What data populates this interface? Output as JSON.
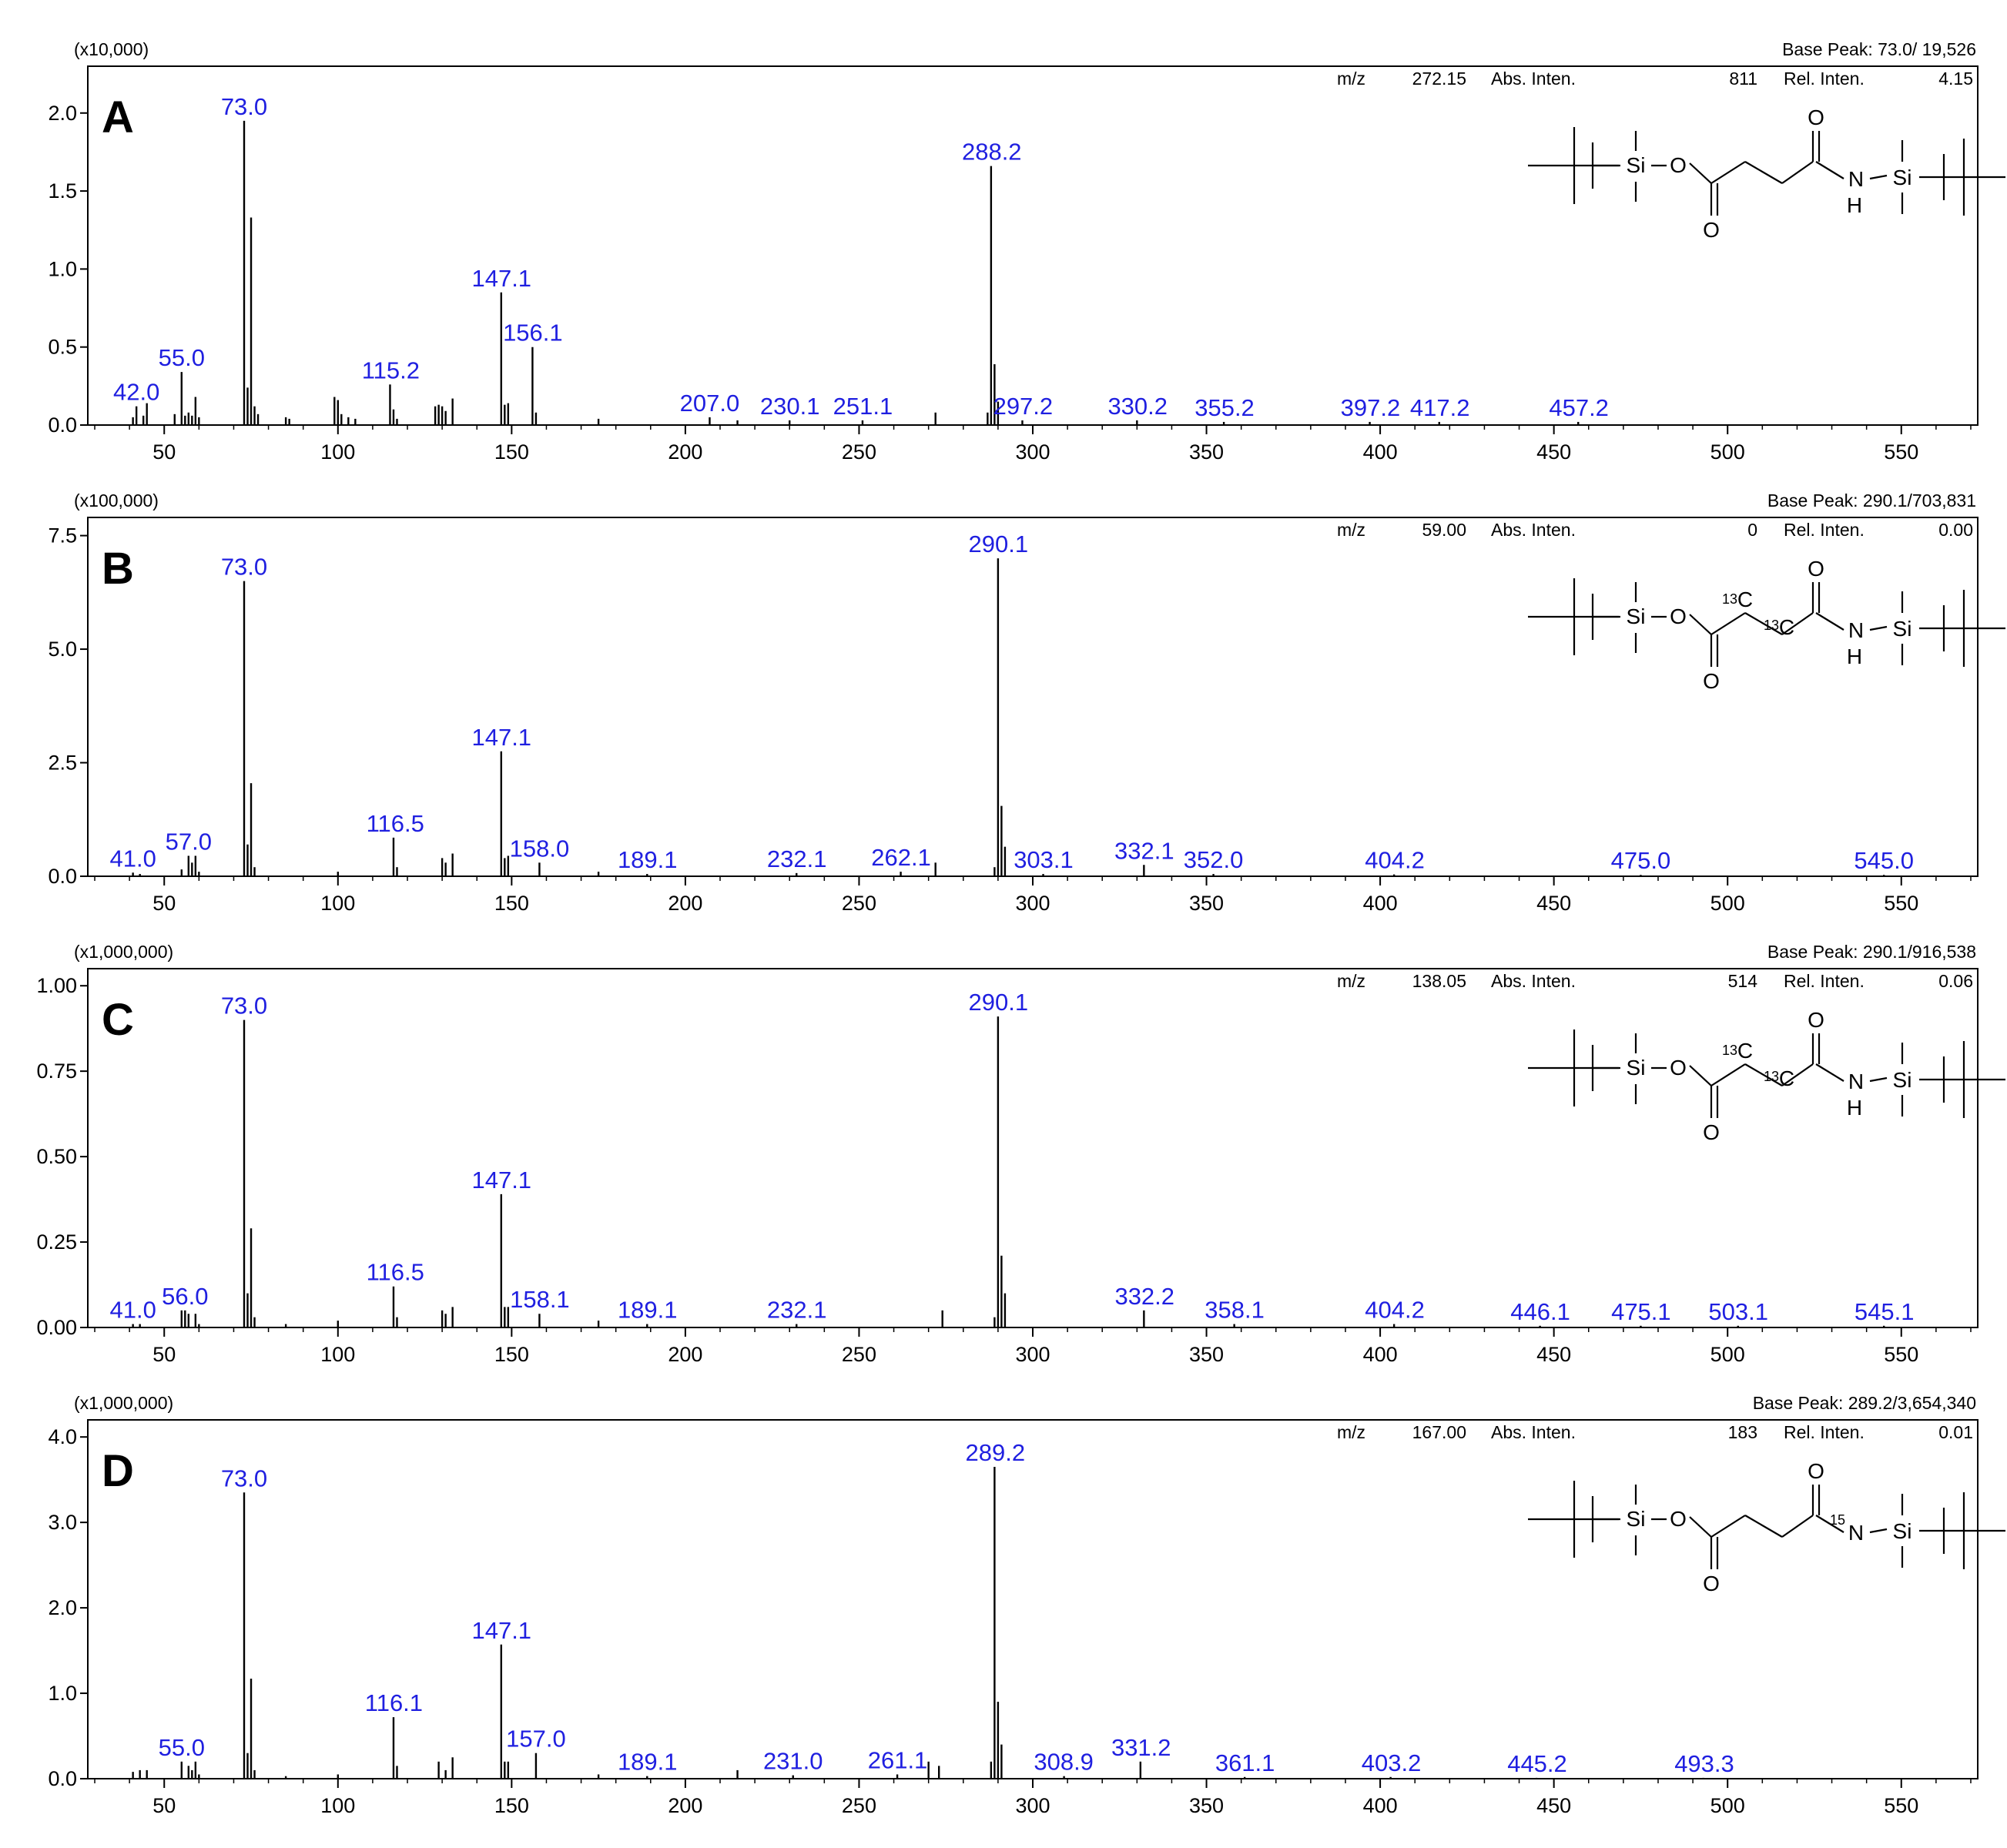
{
  "x_ticks": [
    50,
    100,
    150,
    200,
    250,
    300,
    350,
    400,
    450,
    500,
    550
  ],
  "chart_data": [
    {
      "type": "bar",
      "panel_letter": "A",
      "multiplier": "(x10,000)",
      "base_peak": "Base Peak: 73.0/ 19,526",
      "header": {
        "mz_label": "m/z",
        "mz_value": "272.15",
        "abs_label": "Abs. Inten.",
        "abs_value": "811",
        "rel_label": "Rel. Inten.",
        "rel_value": "4.15"
      },
      "xlim": [
        28,
        572
      ],
      "ylim": [
        0,
        2.3
      ],
      "y_ticks": [
        0.0,
        0.5,
        1.0,
        1.5,
        2.0
      ],
      "y_tick_labels": [
        "0.0",
        "0.5",
        "1.0",
        "1.5",
        "2.0"
      ],
      "peaks": [
        [
          41,
          0.05
        ],
        [
          42,
          0.12
        ],
        [
          44,
          0.06
        ],
        [
          45,
          0.14
        ],
        [
          53,
          0.07
        ],
        [
          55,
          0.34
        ],
        [
          56,
          0.06
        ],
        [
          57,
          0.08
        ],
        [
          58,
          0.06
        ],
        [
          59,
          0.18
        ],
        [
          60,
          0.05
        ],
        [
          73,
          1.95
        ],
        [
          74,
          0.24
        ],
        [
          75,
          1.33
        ],
        [
          76,
          0.12
        ],
        [
          77,
          0.07
        ],
        [
          85,
          0.05
        ],
        [
          86,
          0.04
        ],
        [
          99,
          0.18
        ],
        [
          100,
          0.16
        ],
        [
          101,
          0.07
        ],
        [
          103,
          0.05
        ],
        [
          105,
          0.04
        ],
        [
          115,
          0.26
        ],
        [
          116,
          0.1
        ],
        [
          117,
          0.04
        ],
        [
          128,
          0.12
        ],
        [
          129,
          0.13
        ],
        [
          130,
          0.12
        ],
        [
          131,
          0.09
        ],
        [
          133,
          0.17
        ],
        [
          147,
          0.85
        ],
        [
          148,
          0.13
        ],
        [
          149,
          0.14
        ],
        [
          156,
          0.5
        ],
        [
          157,
          0.08
        ],
        [
          175,
          0.04
        ],
        [
          207,
          0.05
        ],
        [
          215,
          0.03
        ],
        [
          230,
          0.03
        ],
        [
          251,
          0.03
        ],
        [
          272,
          0.08
        ],
        [
          287,
          0.08
        ],
        [
          288,
          1.66
        ],
        [
          289,
          0.39
        ],
        [
          290,
          0.15
        ],
        [
          297,
          0.03
        ],
        [
          330,
          0.03
        ],
        [
          355,
          0.02
        ],
        [
          397,
          0.02
        ],
        [
          417,
          0.02
        ],
        [
          457,
          0.02
        ]
      ],
      "labels": [
        {
          "text": "42.0",
          "mz": 42.0,
          "y": 0.12
        },
        {
          "text": "55.0",
          "mz": 55.0,
          "y": 0.34
        },
        {
          "text": "73.0",
          "mz": 73.0,
          "y": 1.95
        },
        {
          "text": "115.2",
          "mz": 115.2,
          "y": 0.26
        },
        {
          "text": "147.1",
          "mz": 147.1,
          "y": 0.85
        },
        {
          "text": "156.1",
          "mz": 156.1,
          "y": 0.5
        },
        {
          "text": "207.0",
          "mz": 207.0,
          "y": 0.05
        },
        {
          "text": "230.1",
          "mz": 230.1,
          "y": 0.03
        },
        {
          "text": "251.1",
          "mz": 251.1,
          "y": 0.03
        },
        {
          "text": "288.2",
          "mz": 288.2,
          "y": 1.66
        },
        {
          "text": "297.2",
          "mz": 297.2,
          "y": 0.03
        },
        {
          "text": "330.2",
          "mz": 330.2,
          "y": 0.03
        },
        {
          "text": "355.2",
          "mz": 355.2,
          "y": 0.02
        },
        {
          "text": "397.2",
          "mz": 397.2,
          "y": 0.02
        },
        {
          "text": "417.2",
          "mz": 417.2,
          "y": 0.02
        },
        {
          "text": "457.2",
          "mz": 457.2,
          "y": 0.02
        }
      ],
      "structure": {
        "atoms": [
          "Si",
          "O",
          "O",
          "O",
          "N",
          "H",
          "Si"
        ],
        "labels": [
          "",
          "",
          "",
          ""
        ]
      }
    },
    {
      "type": "bar",
      "panel_letter": "B",
      "multiplier": "(x100,000)",
      "base_peak": "Base Peak: 290.1/703,831",
      "header": {
        "mz_label": "m/z",
        "mz_value": "59.00",
        "abs_label": "Abs. Inten.",
        "abs_value": "0",
        "rel_label": "Rel. Inten.",
        "rel_value": "0.00"
      },
      "xlim": [
        28,
        572
      ],
      "ylim": [
        0,
        7.9
      ],
      "y_ticks": [
        0.0,
        2.5,
        5.0,
        7.5
      ],
      "y_tick_labels": [
        "0.0",
        "2.5",
        "5.0",
        "7.5"
      ],
      "peaks": [
        [
          41,
          0.08
        ],
        [
          43,
          0.05
        ],
        [
          55,
          0.15
        ],
        [
          57,
          0.45
        ],
        [
          58,
          0.3
        ],
        [
          59,
          0.45
        ],
        [
          60,
          0.1
        ],
        [
          73,
          6.5
        ],
        [
          74,
          0.7
        ],
        [
          75,
          2.05
        ],
        [
          76,
          0.2
        ],
        [
          100,
          0.1
        ],
        [
          116,
          0.85
        ],
        [
          117,
          0.2
        ],
        [
          130,
          0.4
        ],
        [
          131,
          0.3
        ],
        [
          133,
          0.5
        ],
        [
          147,
          2.75
        ],
        [
          148,
          0.4
        ],
        [
          149,
          0.45
        ],
        [
          158,
          0.3
        ],
        [
          175,
          0.1
        ],
        [
          189,
          0.05
        ],
        [
          232,
          0.07
        ],
        [
          262,
          0.1
        ],
        [
          272,
          0.3
        ],
        [
          289,
          0.2
        ],
        [
          290,
          7.0
        ],
        [
          291,
          1.55
        ],
        [
          292,
          0.65
        ],
        [
          303,
          0.05
        ],
        [
          332,
          0.25
        ],
        [
          352,
          0.05
        ],
        [
          404,
          0.04
        ],
        [
          475,
          0.03
        ],
        [
          545,
          0.03
        ]
      ],
      "labels": [
        {
          "text": "41.0",
          "mz": 41.0,
          "y": 0.08
        },
        {
          "text": "57.0",
          "mz": 57.0,
          "y": 0.45
        },
        {
          "text": "73.0",
          "mz": 73.0,
          "y": 6.5
        },
        {
          "text": "116.5",
          "mz": 116.5,
          "y": 0.85
        },
        {
          "text": "147.1",
          "mz": 147.1,
          "y": 2.75
        },
        {
          "text": "158.0",
          "mz": 158.0,
          "y": 0.3
        },
        {
          "text": "189.1",
          "mz": 189.1,
          "y": 0.05
        },
        {
          "text": "232.1",
          "mz": 232.1,
          "y": 0.07
        },
        {
          "text": "262.1",
          "mz": 262.1,
          "y": 0.1
        },
        {
          "text": "290.1",
          "mz": 290.1,
          "y": 7.0
        },
        {
          "text": "303.1",
          "mz": 303.1,
          "y": 0.05
        },
        {
          "text": "332.1",
          "mz": 332.1,
          "y": 0.25
        },
        {
          "text": "352.0",
          "mz": 352.0,
          "y": 0.05
        },
        {
          "text": "404.2",
          "mz": 404.2,
          "y": 0.04
        },
        {
          "text": "475.0",
          "mz": 475.0,
          "y": 0.03
        },
        {
          "text": "545.0",
          "mz": 545.0,
          "y": 0.03
        }
      ],
      "structure": {
        "atoms": [
          "Si",
          "O",
          "O",
          "O",
          "N",
          "H",
          "Si"
        ],
        "labels": [
          "13",
          "C",
          "13",
          "C"
        ]
      }
    },
    {
      "type": "bar",
      "panel_letter": "C",
      "multiplier": "(x1,000,000)",
      "base_peak": "Base Peak: 290.1/916,538",
      "header": {
        "mz_label": "m/z",
        "mz_value": "138.05",
        "abs_label": "Abs. Inten.",
        "abs_value": "514",
        "rel_label": "Rel. Inten.",
        "rel_value": "0.06"
      },
      "xlim": [
        28,
        572
      ],
      "ylim": [
        0,
        1.05
      ],
      "y_ticks": [
        0.0,
        0.25,
        0.5,
        0.75,
        1.0
      ],
      "y_tick_labels": [
        "0.00",
        "0.25",
        "0.50",
        "0.75",
        "1.00"
      ],
      "peaks": [
        [
          41,
          0.01
        ],
        [
          43,
          0.01
        ],
        [
          55,
          0.05
        ],
        [
          56,
          0.05
        ],
        [
          57,
          0.04
        ],
        [
          59,
          0.04
        ],
        [
          60,
          0.01
        ],
        [
          73,
          0.9
        ],
        [
          74,
          0.1
        ],
        [
          75,
          0.29
        ],
        [
          76,
          0.03
        ],
        [
          85,
          0.01
        ],
        [
          100,
          0.02
        ],
        [
          116,
          0.12
        ],
        [
          117,
          0.03
        ],
        [
          130,
          0.05
        ],
        [
          131,
          0.04
        ],
        [
          133,
          0.06
        ],
        [
          147,
          0.39
        ],
        [
          148,
          0.06
        ],
        [
          149,
          0.06
        ],
        [
          158,
          0.04
        ],
        [
          175,
          0.02
        ],
        [
          189,
          0.01
        ],
        [
          232,
          0.01
        ],
        [
          274,
          0.05
        ],
        [
          289,
          0.03
        ],
        [
          290,
          0.91
        ],
        [
          291,
          0.21
        ],
        [
          292,
          0.1
        ],
        [
          332,
          0.05
        ],
        [
          358,
          0.01
        ],
        [
          404,
          0.01
        ],
        [
          446,
          0.005
        ],
        [
          475,
          0.005
        ],
        [
          503,
          0.005
        ],
        [
          545,
          0.005
        ]
      ],
      "labels": [
        {
          "text": "41.0",
          "mz": 41.0,
          "y": 0.01
        },
        {
          "text": "56.0",
          "mz": 56.0,
          "y": 0.05
        },
        {
          "text": "73.0",
          "mz": 73.0,
          "y": 0.9
        },
        {
          "text": "116.5",
          "mz": 116.5,
          "y": 0.12
        },
        {
          "text": "147.1",
          "mz": 147.1,
          "y": 0.39
        },
        {
          "text": "158.1",
          "mz": 158.1,
          "y": 0.04
        },
        {
          "text": "189.1",
          "mz": 189.1,
          "y": 0.01
        },
        {
          "text": "232.1",
          "mz": 232.1,
          "y": 0.01
        },
        {
          "text": "290.1",
          "mz": 290.1,
          "y": 0.91
        },
        {
          "text": "332.2",
          "mz": 332.2,
          "y": 0.05
        },
        {
          "text": "358.1",
          "mz": 358.1,
          "y": 0.01
        },
        {
          "text": "404.2",
          "mz": 404.2,
          "y": 0.01
        },
        {
          "text": "446.1",
          "mz": 446.1,
          "y": 0.005
        },
        {
          "text": "475.1",
          "mz": 475.1,
          "y": 0.005
        },
        {
          "text": "503.1",
          "mz": 503.1,
          "y": 0.005
        },
        {
          "text": "545.1",
          "mz": 545.1,
          "y": 0.005
        }
      ],
      "structure": {
        "atoms": [
          "Si",
          "O",
          "O",
          "O",
          "N",
          "H",
          "Si"
        ],
        "labels": [
          "13",
          "C",
          "13",
          "C"
        ]
      }
    },
    {
      "type": "bar",
      "panel_letter": "D",
      "multiplier": "(x1,000,000)",
      "base_peak": "Base Peak: 289.2/3,654,340",
      "header": {
        "mz_label": "m/z",
        "mz_value": "167.00",
        "abs_label": "Abs. Inten.",
        "abs_value": "183",
        "rel_label": "Rel. Inten.",
        "rel_value": "0.01"
      },
      "xlim": [
        28,
        572
      ],
      "ylim": [
        0,
        4.2
      ],
      "y_ticks": [
        0.0,
        1.0,
        2.0,
        3.0,
        4.0
      ],
      "y_tick_labels": [
        "0.0",
        "1.0",
        "2.0",
        "3.0",
        "4.0"
      ],
      "peaks": [
        [
          41,
          0.08
        ],
        [
          43,
          0.1
        ],
        [
          45,
          0.1
        ],
        [
          55,
          0.2
        ],
        [
          57,
          0.15
        ],
        [
          58,
          0.1
        ],
        [
          59,
          0.2
        ],
        [
          60,
          0.05
        ],
        [
          73,
          3.35
        ],
        [
          74,
          0.3
        ],
        [
          75,
          1.17
        ],
        [
          76,
          0.1
        ],
        [
          85,
          0.03
        ],
        [
          100,
          0.05
        ],
        [
          116,
          0.72
        ],
        [
          117,
          0.15
        ],
        [
          129,
          0.2
        ],
        [
          131,
          0.1
        ],
        [
          133,
          0.25
        ],
        [
          147,
          1.57
        ],
        [
          148,
          0.2
        ],
        [
          149,
          0.2
        ],
        [
          157,
          0.3
        ],
        [
          175,
          0.05
        ],
        [
          189,
          0.03
        ],
        [
          215,
          0.1
        ],
        [
          231,
          0.04
        ],
        [
          261,
          0.05
        ],
        [
          270,
          0.2
        ],
        [
          273,
          0.15
        ],
        [
          288,
          0.2
        ],
        [
          289,
          3.65
        ],
        [
          290,
          0.9
        ],
        [
          291,
          0.4
        ],
        [
          309,
          0.03
        ],
        [
          331,
          0.2
        ],
        [
          361,
          0.02
        ],
        [
          403,
          0.02
        ],
        [
          445,
          0.01
        ],
        [
          493,
          0.01
        ]
      ],
      "labels": [
        {
          "text": "55.0",
          "mz": 55.0,
          "y": 0.2
        },
        {
          "text": "73.0",
          "mz": 73.0,
          "y": 3.35
        },
        {
          "text": "116.1",
          "mz": 116.1,
          "y": 0.72
        },
        {
          "text": "147.1",
          "mz": 147.1,
          "y": 1.57
        },
        {
          "text": "157.0",
          "mz": 157.0,
          "y": 0.3
        },
        {
          "text": "189.1",
          "mz": 189.1,
          "y": 0.03
        },
        {
          "text": "231.0",
          "mz": 231.0,
          "y": 0.04
        },
        {
          "text": "261.1",
          "mz": 261.1,
          "y": 0.05
        },
        {
          "text": "289.2",
          "mz": 289.2,
          "y": 3.65
        },
        {
          "text": "308.9",
          "mz": 308.9,
          "y": 0.03
        },
        {
          "text": "331.2",
          "mz": 331.2,
          "y": 0.2
        },
        {
          "text": "361.1",
          "mz": 361.1,
          "y": 0.02
        },
        {
          "text": "403.2",
          "mz": 403.2,
          "y": 0.02
        },
        {
          "text": "445.2",
          "mz": 445.2,
          "y": 0.01
        },
        {
          "text": "493.3",
          "mz": 493.3,
          "y": 0.01
        }
      ],
      "structure": {
        "atoms": [
          "Si",
          "O",
          "O",
          "O",
          "N",
          "Si"
        ],
        "labels": [
          "15"
        ]
      }
    }
  ]
}
